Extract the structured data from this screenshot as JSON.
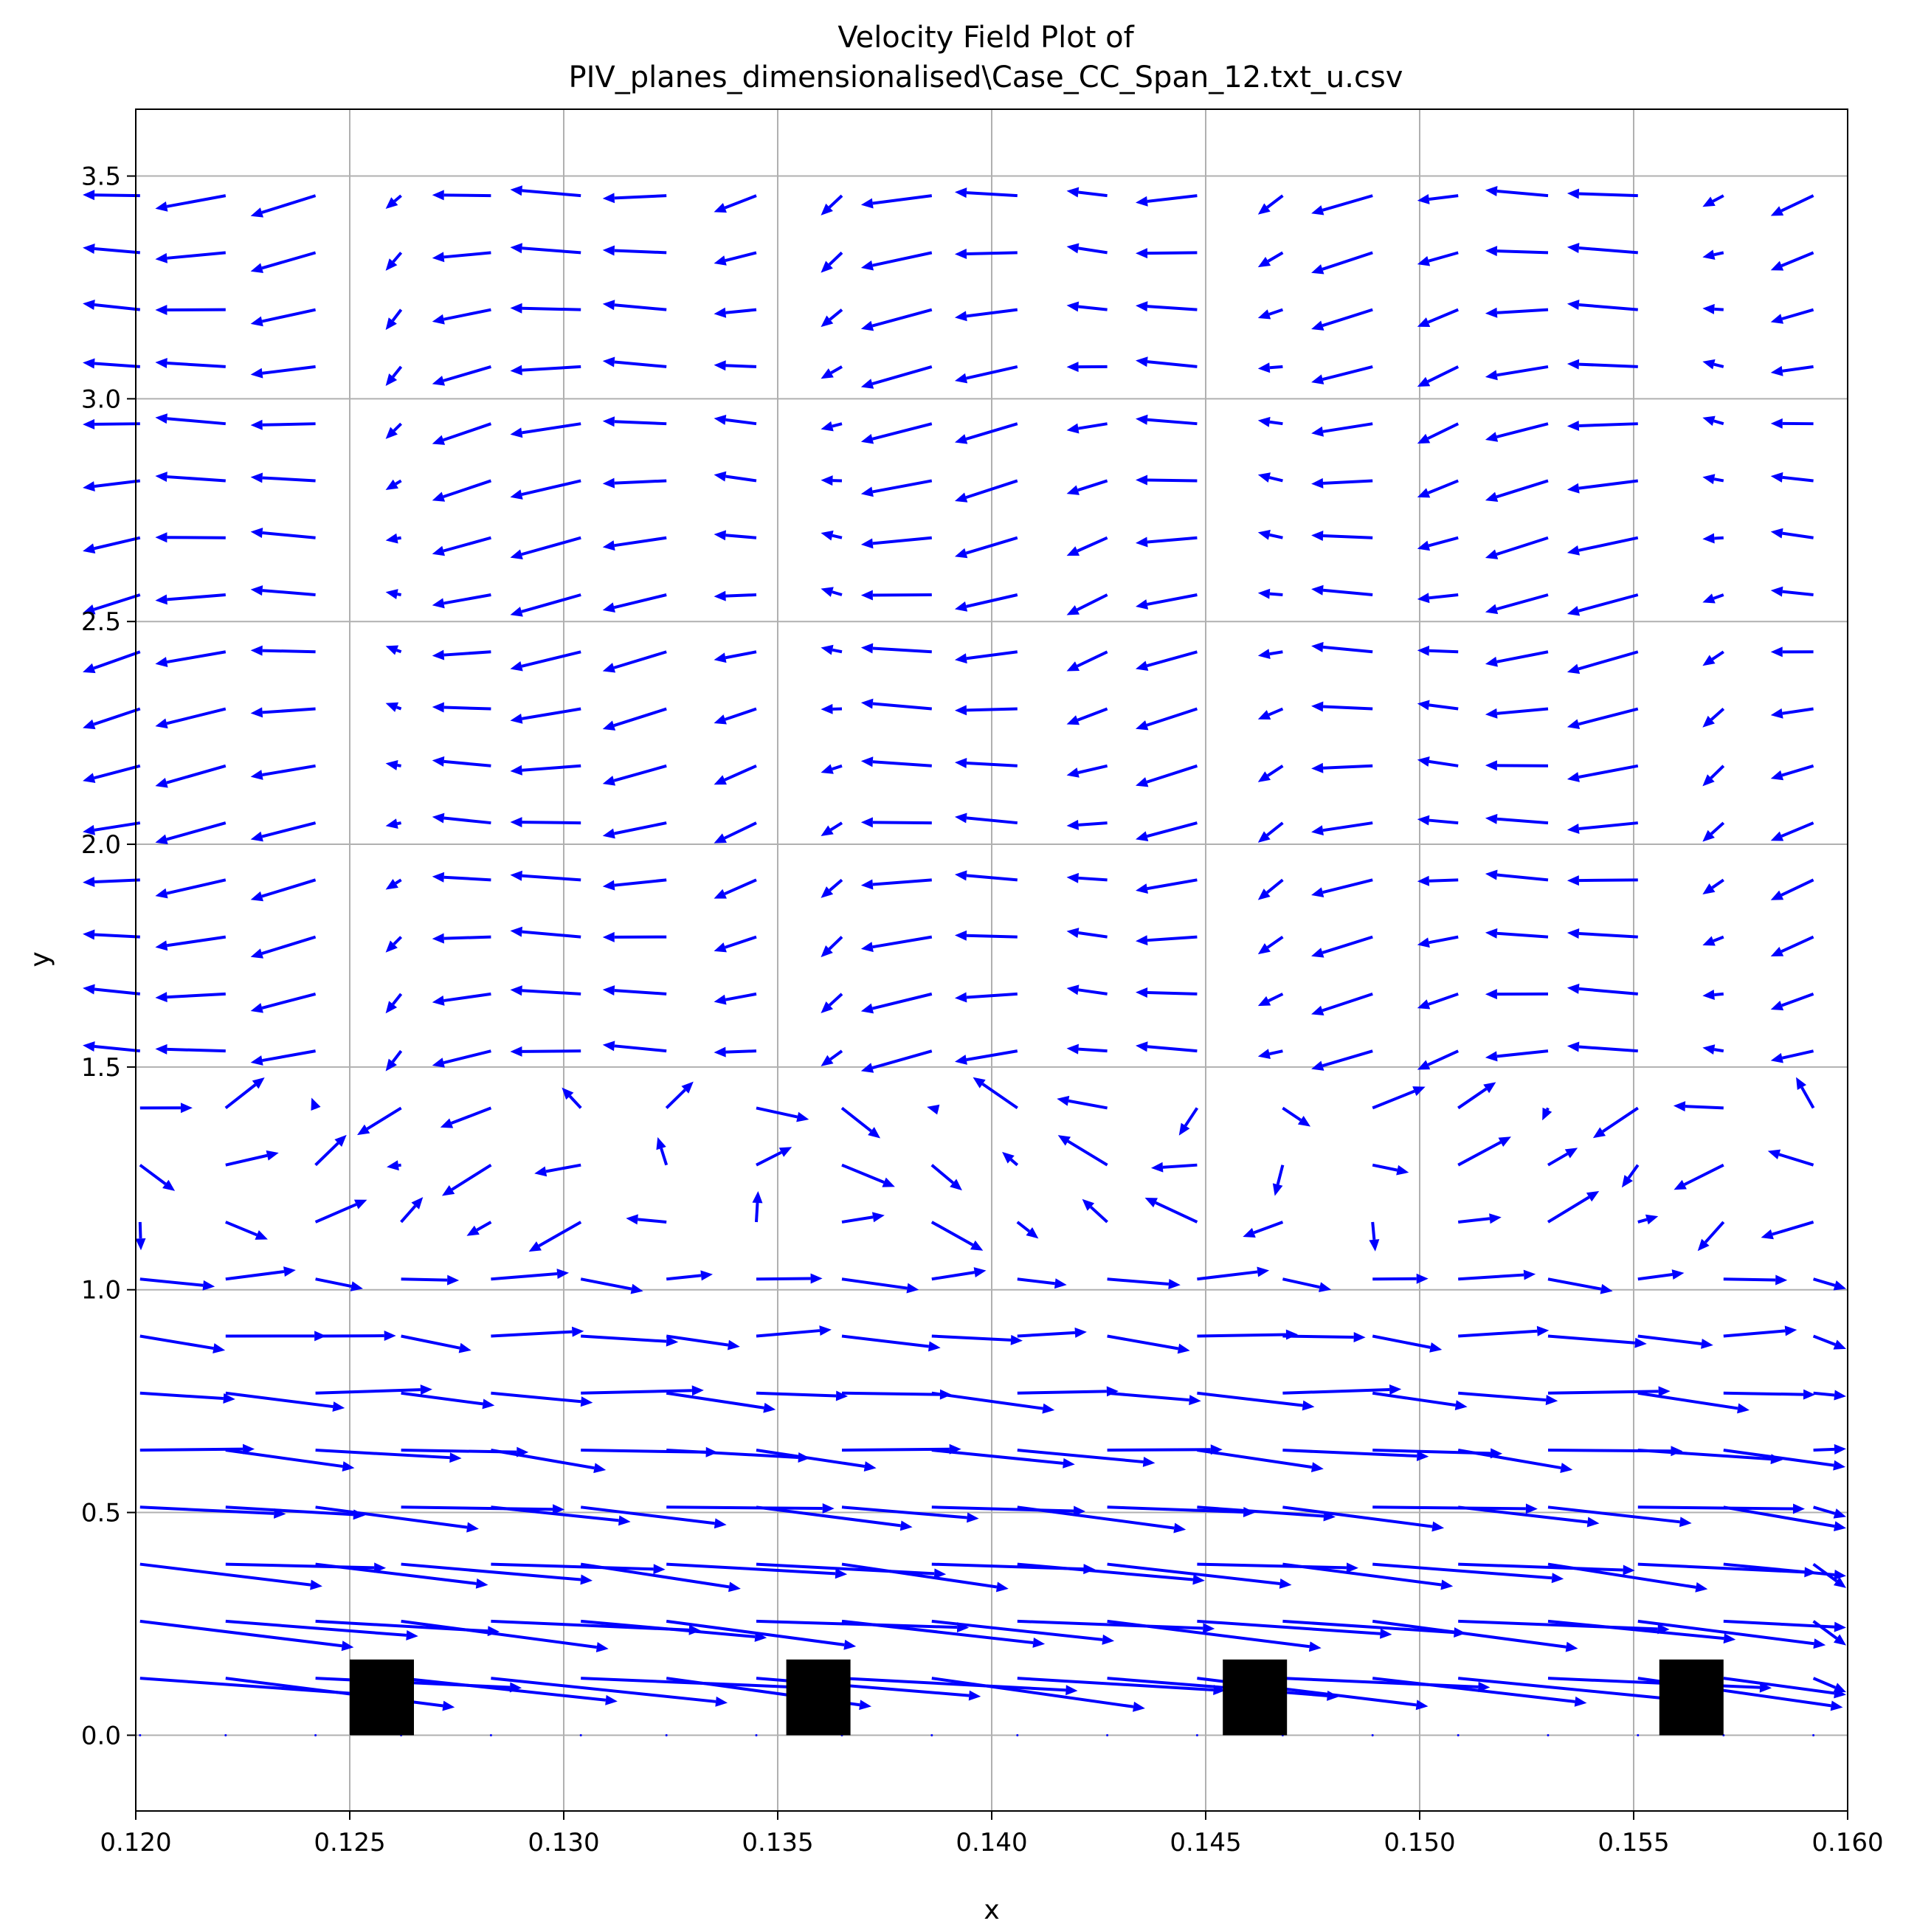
{
  "chart_data": {
    "type": "quiver",
    "title": "Velocity Field Plot of",
    "subtitle": "PIV_planes_dimensionalised\\Case_CC_Span_12.txt_u.csv",
    "xlabel": "x",
    "ylabel": "y",
    "xlim": [
      0.12,
      0.16
    ],
    "ylim": [
      -0.17,
      3.65
    ],
    "xticks": [
      "0.120",
      "0.125",
      "0.130",
      "0.135",
      "0.140",
      "0.145",
      "0.150",
      "0.155",
      "0.160"
    ],
    "yticks": [
      "0.0",
      "0.5",
      "1.0",
      "1.5",
      "2.0",
      "2.5",
      "3.0",
      "3.5"
    ],
    "grid": true,
    "arrow_color": "#0000ff",
    "obstacle_color": "#000000",
    "grid_x": [
      0.1201,
      0.1221,
      0.1242,
      0.1262,
      0.1283,
      0.1304,
      0.1324,
      0.1345,
      0.1365,
      0.1386,
      0.1406,
      0.1427,
      0.1448,
      0.1468,
      0.1489,
      0.1509,
      0.153,
      0.1551,
      0.1571,
      0.1592
    ],
    "grid_y": [
      0.0,
      0.128,
      0.256,
      0.384,
      0.512,
      0.64,
      0.768,
      0.896,
      1.024,
      1.152,
      1.28,
      1.408,
      1.536,
      1.664,
      1.792,
      1.92,
      2.048,
      2.176,
      2.304,
      2.432,
      2.56,
      2.688,
      2.816,
      2.944,
      3.072,
      3.2,
      3.328,
      3.456
    ],
    "obstacles": [
      {
        "x0": 0.125,
        "x1": 0.1265,
        "y0": 0.0,
        "y1": 0.17
      },
      {
        "x0": 0.1352,
        "x1": 0.1367,
        "y0": 0.0,
        "y1": 0.17
      },
      {
        "x0": 0.1454,
        "x1": 0.1469,
        "y0": 0.0,
        "y1": 0.17
      },
      {
        "x0": 0.1556,
        "x1": 0.1571,
        "y0": 0.0,
        "y1": 0.17
      }
    ]
  }
}
